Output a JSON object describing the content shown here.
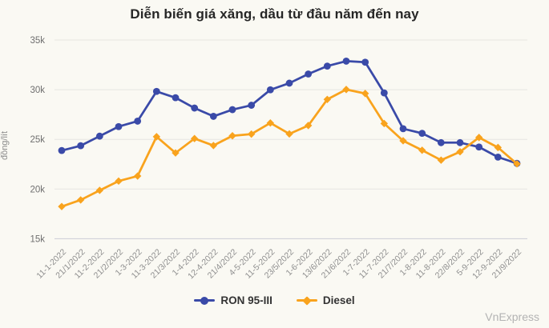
{
  "title": "Diễn biến giá xăng, dầu từ đầu năm đến nay",
  "credit": "VnExpress",
  "colors": {
    "background": "#faf9f3",
    "ron": "#3a4aa8",
    "diesel": "#f9a31d",
    "gridline": "#e6e5e1",
    "axis_line": "#ccccd6",
    "tick_label": "#6f6f6f",
    "x_label": "#8f8f8f"
  },
  "chart_data": {
    "type": "line",
    "title": "Diễn biến giá xăng, dầu từ đầu năm đến nay",
    "ylabel": "đồng/lít",
    "xlabel": "",
    "ylim": [
      15000,
      35000
    ],
    "grid": true,
    "legend_position": "bottom",
    "yticks": [
      {
        "value": 35000,
        "label": "35k"
      },
      {
        "value": 30000,
        "label": "30k"
      },
      {
        "value": 25000,
        "label": "25k"
      },
      {
        "value": 20000,
        "label": "20k"
      },
      {
        "value": 15000,
        "label": "15k"
      }
    ],
    "categories": [
      "11-1-2022",
      "21/1/2022",
      "11-2-2022",
      "21/2/2022",
      "1-3-2022",
      "11-3-2022",
      "21/3/2022",
      "1-4-2022",
      "12-4-2022",
      "21/4/2022",
      "4-5-2022",
      "11-5-2022",
      "23/5/2022",
      "1-6-2022",
      "13/6/2022",
      "21/6/2022",
      "1-7-2022",
      "11-7-2022",
      "21/7/2022",
      "1-8-2022",
      "11-8-2022",
      "22/8/2022",
      "5-9-2022",
      "12-9-2022",
      "21/9/2022"
    ],
    "series": [
      {
        "name": "RON 95-III",
        "color": "#3a4aa8",
        "marker": "circle",
        "values": [
          23876,
          24360,
          25322,
          26287,
          26834,
          29824,
          29192,
          28153,
          27317,
          27992,
          28434,
          29988,
          30657,
          31578,
          32375,
          32873,
          32763,
          29675,
          26070,
          25608,
          24669,
          24669,
          24230,
          23215,
          22584
        ]
      },
      {
        "name": "Diesel",
        "color": "#f9a31d",
        "marker": "diamond",
        "values": [
          18239,
          18903,
          19865,
          20801,
          21310,
          25268,
          23633,
          25080,
          24380,
          25359,
          25530,
          26650,
          25550,
          26394,
          29020,
          30019,
          29615,
          26593,
          24858,
          23908,
          22908,
          23750,
          25188,
          24180,
          22536
        ]
      }
    ]
  }
}
